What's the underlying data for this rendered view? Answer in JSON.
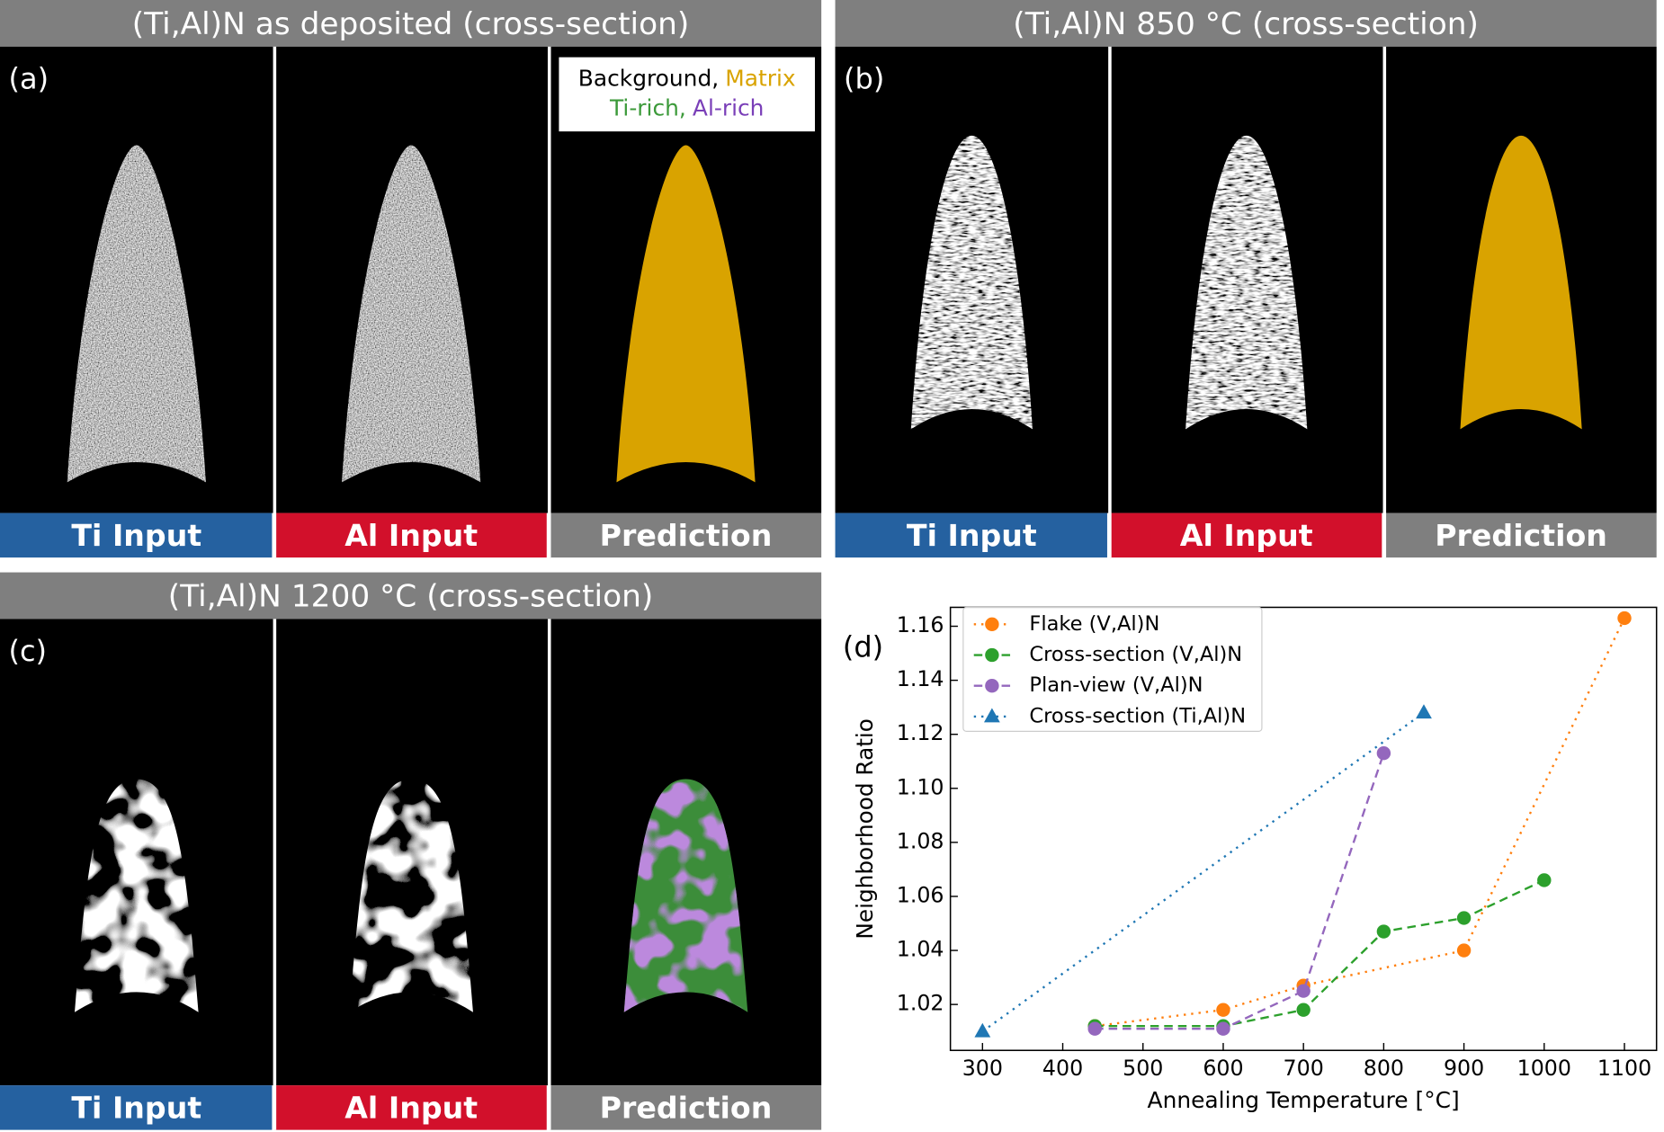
{
  "panels": [
    {
      "title": "(Ti,Al)N as deposited  (cross-section)",
      "letter": "(a)",
      "labels": [
        "Ti Input",
        "Al Input",
        "Prediction"
      ]
    },
    {
      "title": "(Ti,Al)N 850 °C (cross-section)",
      "letter": "(b)",
      "labels": [
        "Ti Input",
        "Al Input",
        "Prediction"
      ]
    },
    {
      "title": "(Ti,Al)N 1200 °C (cross-section)",
      "letter": "(c)",
      "labels": [
        "Ti Input",
        "Al Input",
        "Prediction"
      ]
    }
  ],
  "class_legend": {
    "background": "Background,",
    "matrix": "Matrix",
    "ti_rich": "Ti-rich,",
    "al_rich": "Al-rich"
  },
  "chart_data": {
    "type": "line",
    "letter": "(d)",
    "x_label": "Annealing Temperature [°C]",
    "y_label": "Neighborhood Ratio",
    "xlim": [
      260,
      1140
    ],
    "ylim": [
      1.003,
      1.167
    ],
    "xticks": [
      300,
      400,
      500,
      600,
      700,
      800,
      900,
      1000,
      1100
    ],
    "yticks": [
      1.02,
      1.04,
      1.06,
      1.08,
      {
        "value": 1.1,
        "label": "1.10"
      },
      1.12,
      1.14,
      1.16
    ],
    "legend": "upper left",
    "series": [
      {
        "name": "Flake (V,Al)N",
        "color": "#ff7f0e",
        "marker": "circle",
        "linestyle": "dotted",
        "x": [
          440,
          600,
          700,
          900,
          1100
        ],
        "values": [
          1.012,
          1.018,
          1.027,
          1.04,
          1.163
        ]
      },
      {
        "name": "Cross-section (V,Al)N",
        "color": "#2ca02c",
        "marker": "circle",
        "linestyle": "dashed",
        "x": [
          440,
          600,
          700,
          800,
          900,
          1000
        ],
        "values": [
          1.012,
          1.012,
          1.018,
          1.047,
          1.052,
          1.066
        ]
      },
      {
        "name": "Plan-view (V,Al)N",
        "color": "#9467bd",
        "marker": "circle",
        "linestyle": "dashed",
        "x": [
          440,
          600,
          700,
          800
        ],
        "values": [
          1.011,
          1.011,
          1.025,
          1.113
        ]
      },
      {
        "name": "Cross-section (Ti,Al)N",
        "color": "#1f77b4",
        "marker": "triangle",
        "linestyle": "dotted",
        "x": [
          300,
          850
        ],
        "values": [
          1.01,
          1.128
        ]
      }
    ]
  }
}
